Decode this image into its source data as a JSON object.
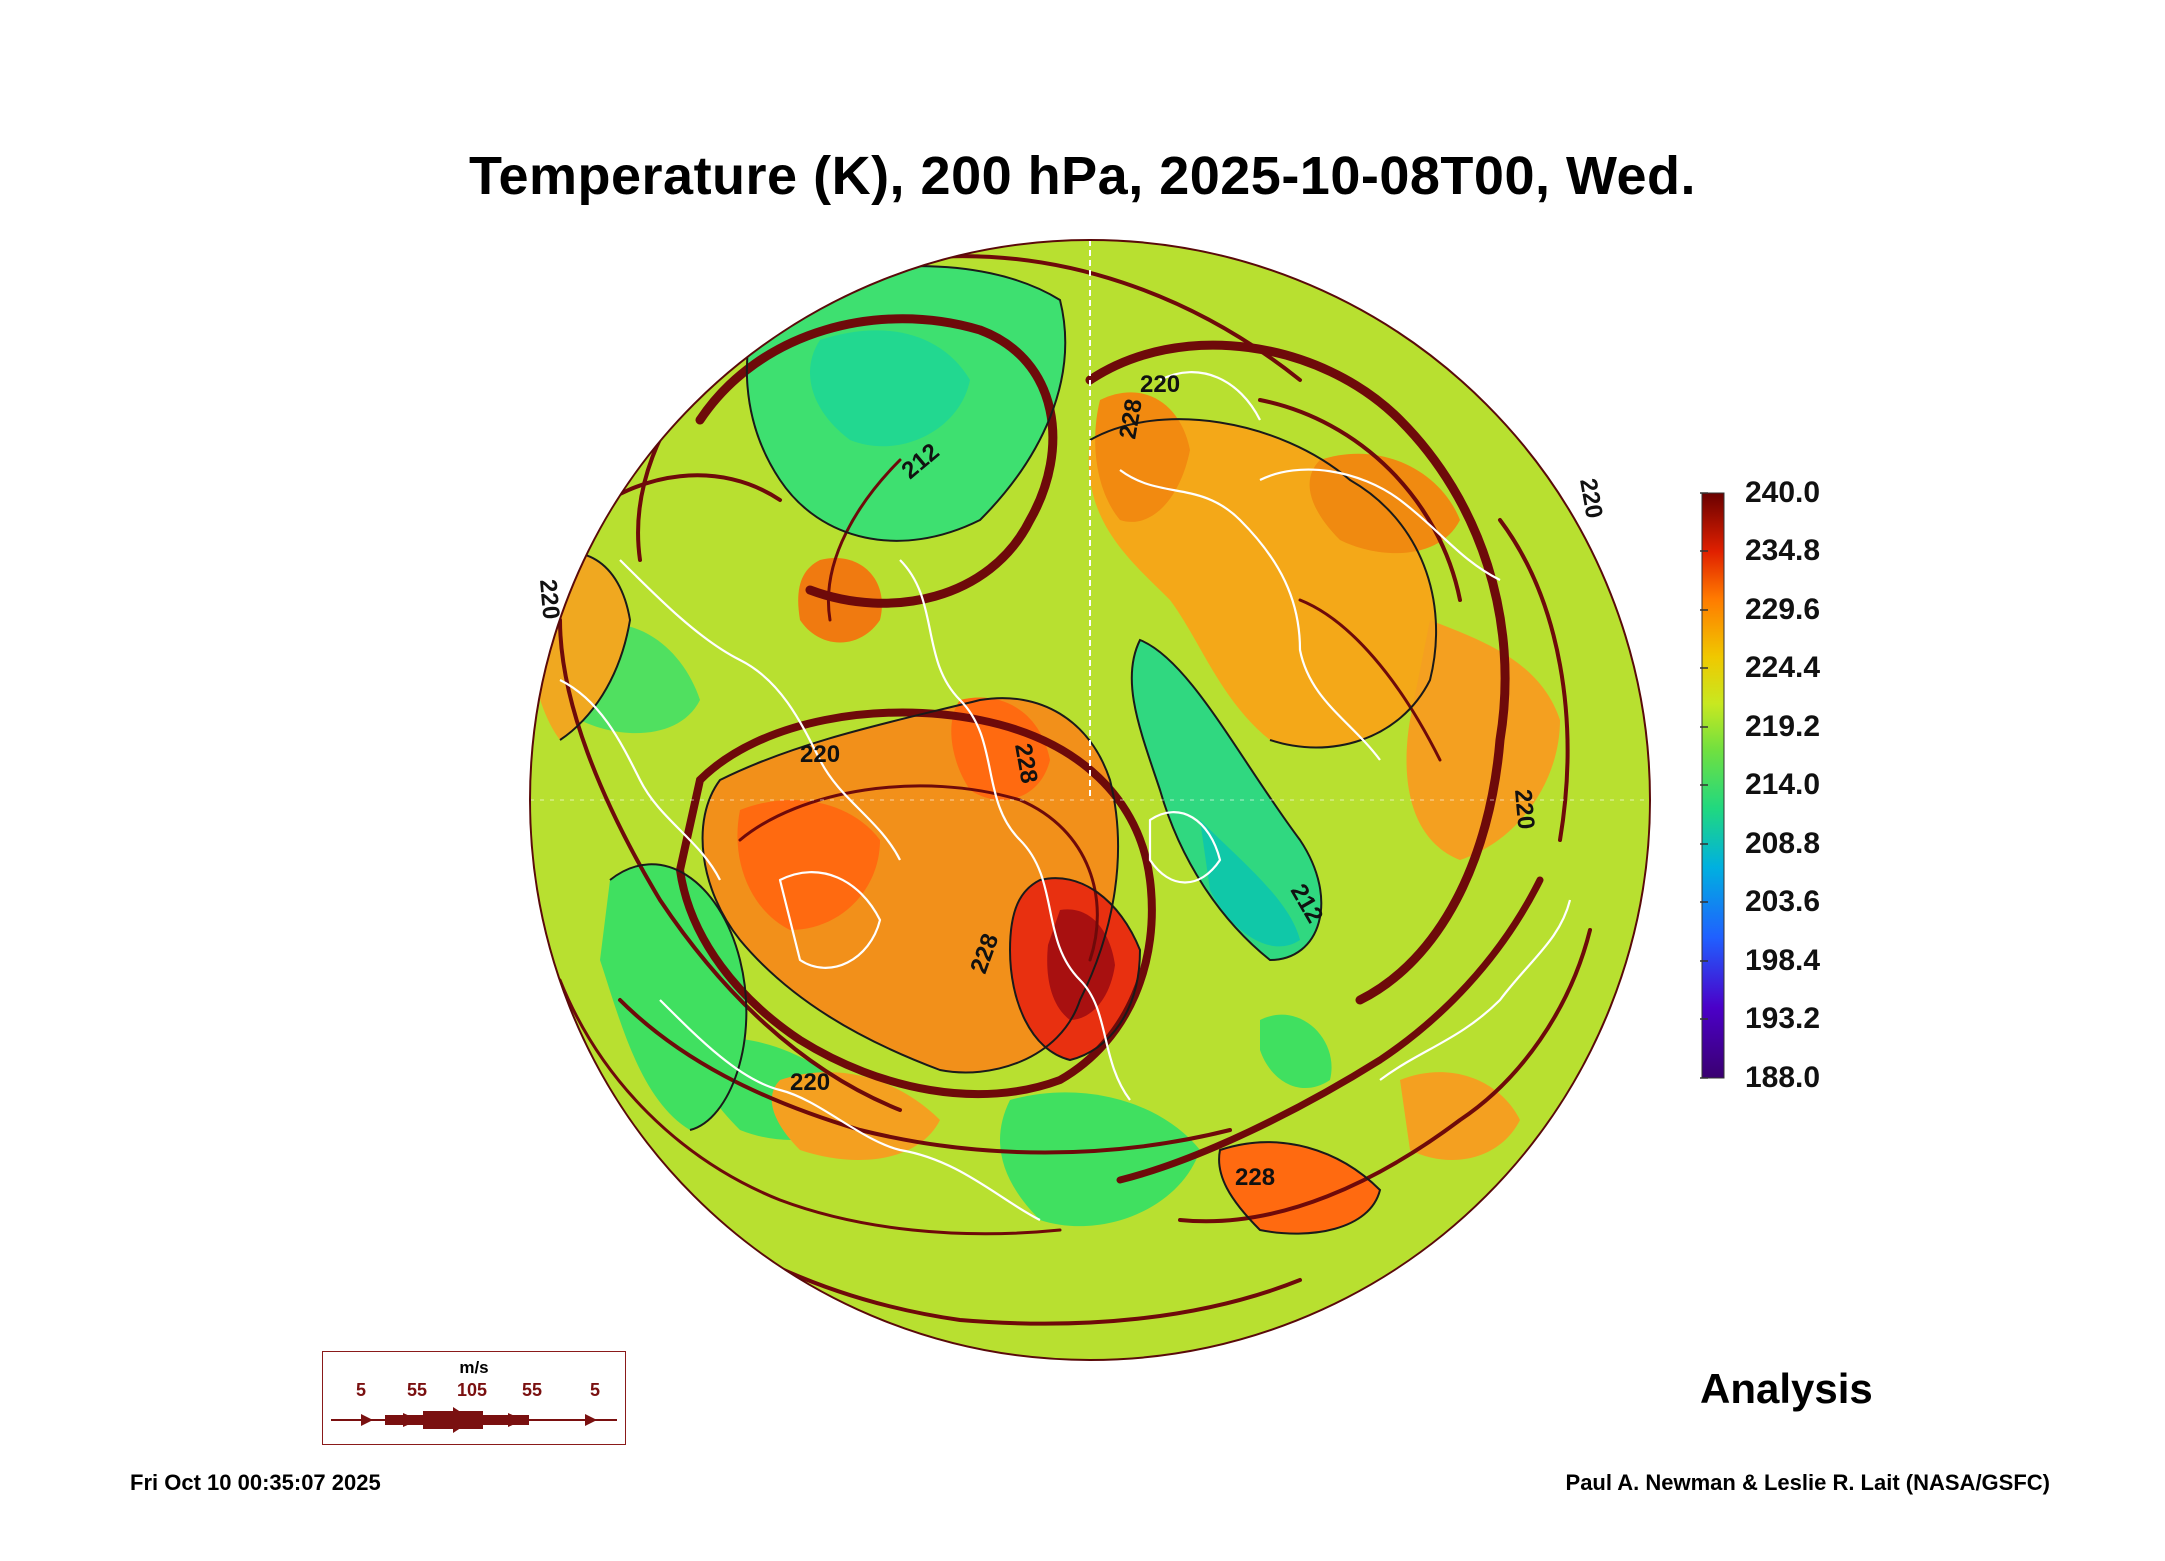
{
  "title": "Temperature (K), 200 hPa, 2025-10-08T00, Wed.",
  "colorbar": {
    "labels": [
      "240.0",
      "234.8",
      "229.6",
      "224.4",
      "219.2",
      "214.0",
      "208.8",
      "203.6",
      "198.4",
      "193.2",
      "188.0"
    ],
    "colors": [
      "#4b0082",
      "#3050ff",
      "#00c8a0",
      "#40e060",
      "#b0e830",
      "#f0d800",
      "#ffa000",
      "#ff5a10",
      "#d01010",
      "#7a0000"
    ]
  },
  "contour_labels": [
    "220",
    "228",
    "212",
    "228",
    "220",
    "220",
    "228",
    "212",
    "220",
    "228",
    "220",
    "220"
  ],
  "wind_legend": {
    "unit": "m/s",
    "values": [
      "5",
      "55",
      "105",
      "55",
      "5"
    ]
  },
  "analysis_label": "Analysis",
  "timestamp": "Fri Oct 10 00:35:07 2025",
  "credit": "Paul A. Newman & Leslie R. Lait (NASA/GSFC)"
}
